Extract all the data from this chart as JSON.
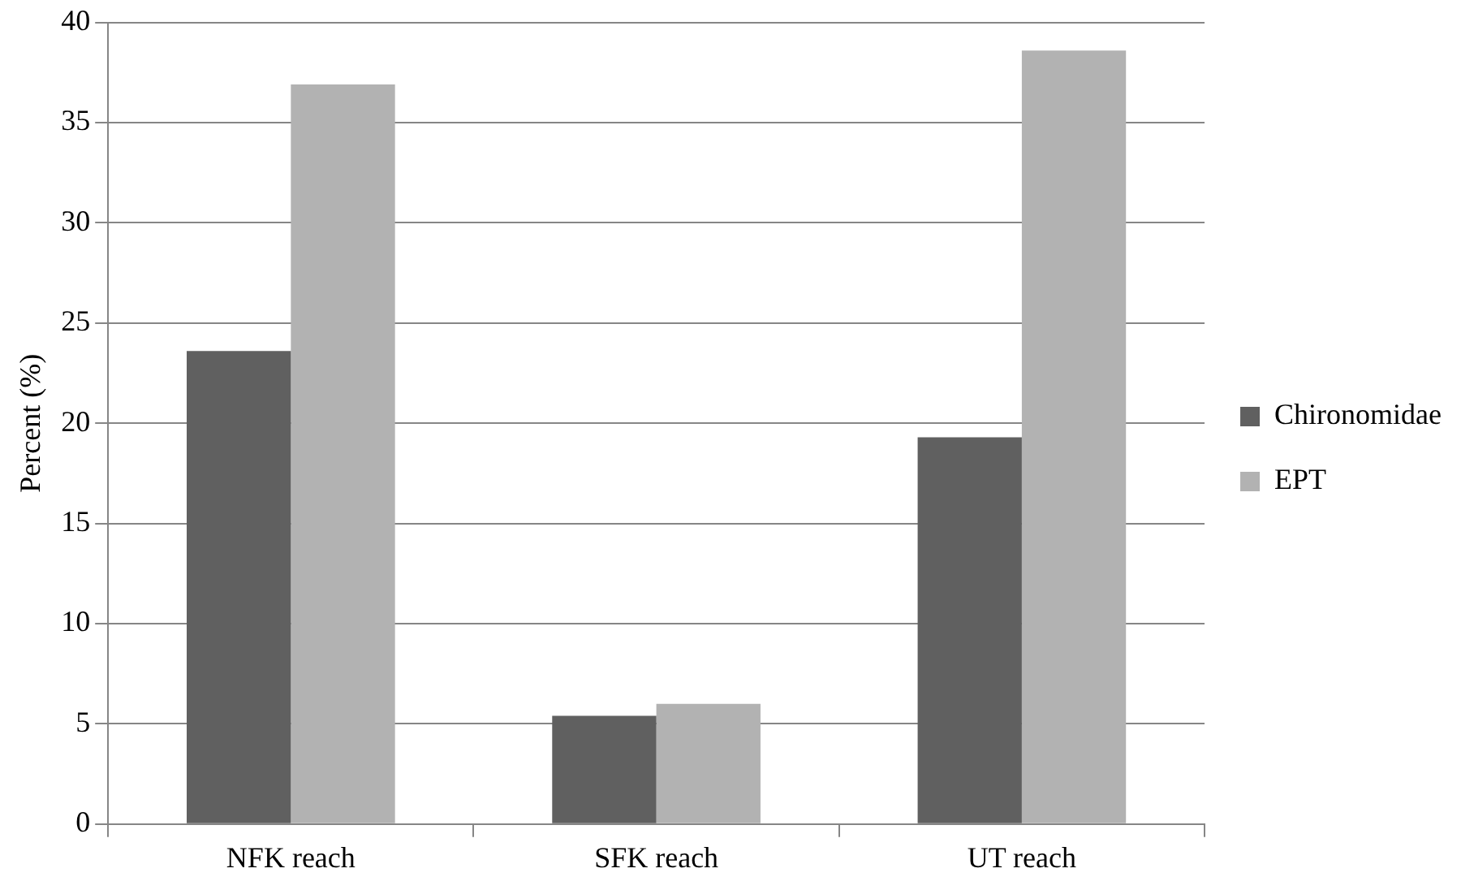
{
  "chart_data": {
    "type": "bar",
    "ylabel": "Percent (%)",
    "categories": [
      "NFK reach",
      "SFK reach",
      "UT reach"
    ],
    "series": [
      {
        "name": "Chironomidae",
        "color": "#606060",
        "values": [
          23.6,
          5.4,
          19.3
        ]
      },
      {
        "name": "EPT",
        "color": "#b2b2b2",
        "values": [
          36.9,
          6.0,
          38.6
        ]
      }
    ],
    "ylim": [
      0,
      40
    ],
    "yticks": [
      0,
      5,
      10,
      15,
      20,
      25,
      30,
      35,
      40
    ],
    "grid": "y",
    "legend": "right"
  }
}
